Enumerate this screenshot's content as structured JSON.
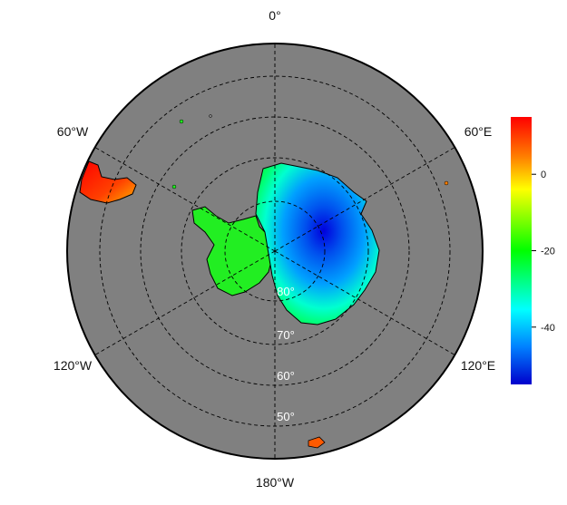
{
  "map": {
    "projection": "south-polar-stereographic",
    "ocean_color": "#808080",
    "outline_color": "#000000",
    "grid_style": "dashed",
    "longitude_labels": [
      {
        "key": "lon-0",
        "text": "0°",
        "lon": 0
      },
      {
        "key": "lon-60e",
        "text": "60°E",
        "lon": 60
      },
      {
        "key": "lon-120e",
        "text": "120°E",
        "lon": 120
      },
      {
        "key": "lon-180w",
        "text": "180°W",
        "lon": 180
      },
      {
        "key": "lon-120w",
        "text": "120°W",
        "lon": -120
      },
      {
        "key": "lon-60w",
        "text": "60°W",
        "lon": -60
      }
    ],
    "latitude_labels": [
      {
        "key": "lat-80",
        "text": "80°",
        "lat": -80
      },
      {
        "key": "lat-70",
        "text": "70°",
        "lat": -70
      },
      {
        "key": "lat-60",
        "text": "60°",
        "lat": -60
      },
      {
        "key": "lat-50",
        "text": "50°",
        "lat": -50
      }
    ]
  },
  "colorbar": {
    "ticks": [
      "0",
      "-20",
      "-40"
    ],
    "colors": [
      "#ff0000",
      "#ff8000",
      "#ffff00",
      "#00ff00",
      "#00ffff",
      "#0080ff",
      "#0000cc"
    ]
  }
}
